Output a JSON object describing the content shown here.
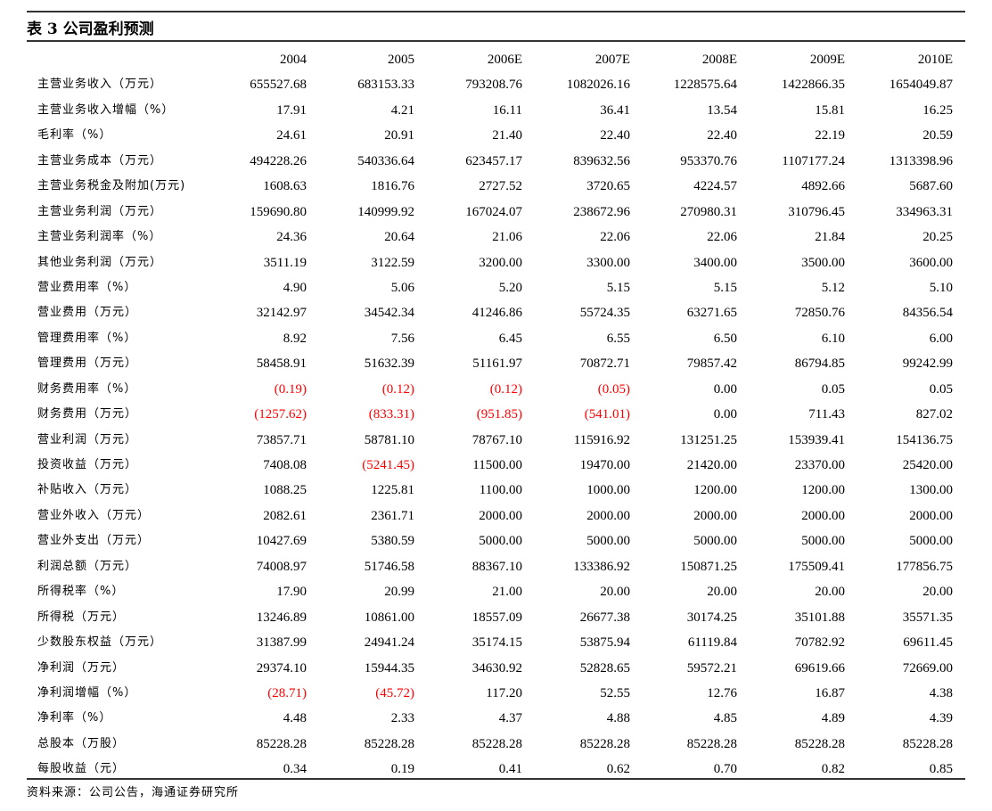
{
  "title": "表 3 公司盈利预测",
  "columns": [
    "2004",
    "2005",
    "2006E",
    "2007E",
    "2008E",
    "2009E",
    "2010E"
  ],
  "negative_color": "#ff0000",
  "rows": [
    {
      "label": "主营业务收入（万元）",
      "values": [
        "655527.68",
        "683153.33",
        "793208.76",
        "1082026.16",
        "1228575.64",
        "1422866.35",
        "1654049.87"
      ]
    },
    {
      "label": "主营业务收入增幅（%）",
      "values": [
        "17.91",
        "4.21",
        "16.11",
        "36.41",
        "13.54",
        "15.81",
        "16.25"
      ]
    },
    {
      "label": "毛利率（%）",
      "values": [
        "24.61",
        "20.91",
        "21.40",
        "22.40",
        "22.40",
        "22.19",
        "20.59"
      ]
    },
    {
      "label": "主营业务成本（万元）",
      "values": [
        "494228.26",
        "540336.64",
        "623457.17",
        "839632.56",
        "953370.76",
        "1107177.24",
        "1313398.96"
      ]
    },
    {
      "label": "主营业务税金及附加(万元)",
      "values": [
        "1608.63",
        "1816.76",
        "2727.52",
        "3720.65",
        "4224.57",
        "4892.66",
        "5687.60"
      ]
    },
    {
      "label": "主营业务利润（万元）",
      "values": [
        "159690.80",
        "140999.92",
        "167024.07",
        "238672.96",
        "270980.31",
        "310796.45",
        "334963.31"
      ]
    },
    {
      "label": "主营业务利润率（%）",
      "values": [
        "24.36",
        "20.64",
        "21.06",
        "22.06",
        "22.06",
        "21.84",
        "20.25"
      ]
    },
    {
      "label": "其他业务利润（万元）",
      "values": [
        "3511.19",
        "3122.59",
        "3200.00",
        "3300.00",
        "3400.00",
        "3500.00",
        "3600.00"
      ]
    },
    {
      "label": "营业费用率（%）",
      "values": [
        "4.90",
        "5.06",
        "5.20",
        "5.15",
        "5.15",
        "5.12",
        "5.10"
      ]
    },
    {
      "label": "营业费用（万元）",
      "values": [
        "32142.97",
        "34542.34",
        "41246.86",
        "55724.35",
        "63271.65",
        "72850.76",
        "84356.54"
      ]
    },
    {
      "label": "管理费用率（%）",
      "values": [
        "8.92",
        "7.56",
        "6.45",
        "6.55",
        "6.50",
        "6.10",
        "6.00"
      ]
    },
    {
      "label": "管理费用（万元）",
      "values": [
        "58458.91",
        "51632.39",
        "51161.97",
        "70872.71",
        "79857.42",
        "86794.85",
        "99242.99"
      ]
    },
    {
      "label": "财务费用率（%）",
      "values": [
        "(0.19)",
        "(0.12)",
        "(0.12)",
        "(0.05)",
        "0.00",
        "0.05",
        "0.05"
      ]
    },
    {
      "label": "财务费用（万元）",
      "values": [
        "(1257.62)",
        "(833.31)",
        "(951.85)",
        "(541.01)",
        "0.00",
        "711.43",
        "827.02"
      ]
    },
    {
      "label": "营业利润（万元）",
      "values": [
        "73857.71",
        "58781.10",
        "78767.10",
        "115916.92",
        "131251.25",
        "153939.41",
        "154136.75"
      ]
    },
    {
      "label": "投资收益（万元）",
      "values": [
        "7408.08",
        "(5241.45)",
        "11500.00",
        "19470.00",
        "21420.00",
        "23370.00",
        "25420.00"
      ]
    },
    {
      "label": "补贴收入（万元）",
      "values": [
        "1088.25",
        "1225.81",
        "1100.00",
        "1000.00",
        "1200.00",
        "1200.00",
        "1300.00"
      ]
    },
    {
      "label": "营业外收入（万元）",
      "values": [
        "2082.61",
        "2361.71",
        "2000.00",
        "2000.00",
        "2000.00",
        "2000.00",
        "2000.00"
      ]
    },
    {
      "label": "营业外支出（万元）",
      "values": [
        "10427.69",
        "5380.59",
        "5000.00",
        "5000.00",
        "5000.00",
        "5000.00",
        "5000.00"
      ]
    },
    {
      "label": "利润总额（万元）",
      "values": [
        "74008.97",
        "51746.58",
        "88367.10",
        "133386.92",
        "150871.25",
        "175509.41",
        "177856.75"
      ]
    },
    {
      "label": "所得税率（%）",
      "values": [
        "17.90",
        "20.99",
        "21.00",
        "20.00",
        "20.00",
        "20.00",
        "20.00"
      ]
    },
    {
      "label": "所得税（万元）",
      "values": [
        "13246.89",
        "10861.00",
        "18557.09",
        "26677.38",
        "30174.25",
        "35101.88",
        "35571.35"
      ]
    },
    {
      "label": "少数股东权益（万元）",
      "values": [
        "31387.99",
        "24941.24",
        "35174.15",
        "53875.94",
        "61119.84",
        "70782.92",
        "69611.45"
      ]
    },
    {
      "label": "净利润（万元）",
      "values": [
        "29374.10",
        "15944.35",
        "34630.92",
        "52828.65",
        "59572.21",
        "69619.66",
        "72669.00"
      ]
    },
    {
      "label": "净利润增幅（%）",
      "values": [
        "(28.71)",
        "(45.72)",
        "117.20",
        "52.55",
        "12.76",
        "16.87",
        "4.38"
      ]
    },
    {
      "label": "净利率（%）",
      "values": [
        "4.48",
        "2.33",
        "4.37",
        "4.88",
        "4.85",
        "4.89",
        "4.39"
      ]
    },
    {
      "label": "总股本（万股）",
      "values": [
        "85228.28",
        "85228.28",
        "85228.28",
        "85228.28",
        "85228.28",
        "85228.28",
        "85228.28"
      ]
    },
    {
      "label": "每股收益（元）",
      "values": [
        "0.34",
        "0.19",
        "0.41",
        "0.62",
        "0.70",
        "0.82",
        "0.85"
      ]
    }
  ],
  "source": "资料来源：公司公告，海通证券研究所"
}
